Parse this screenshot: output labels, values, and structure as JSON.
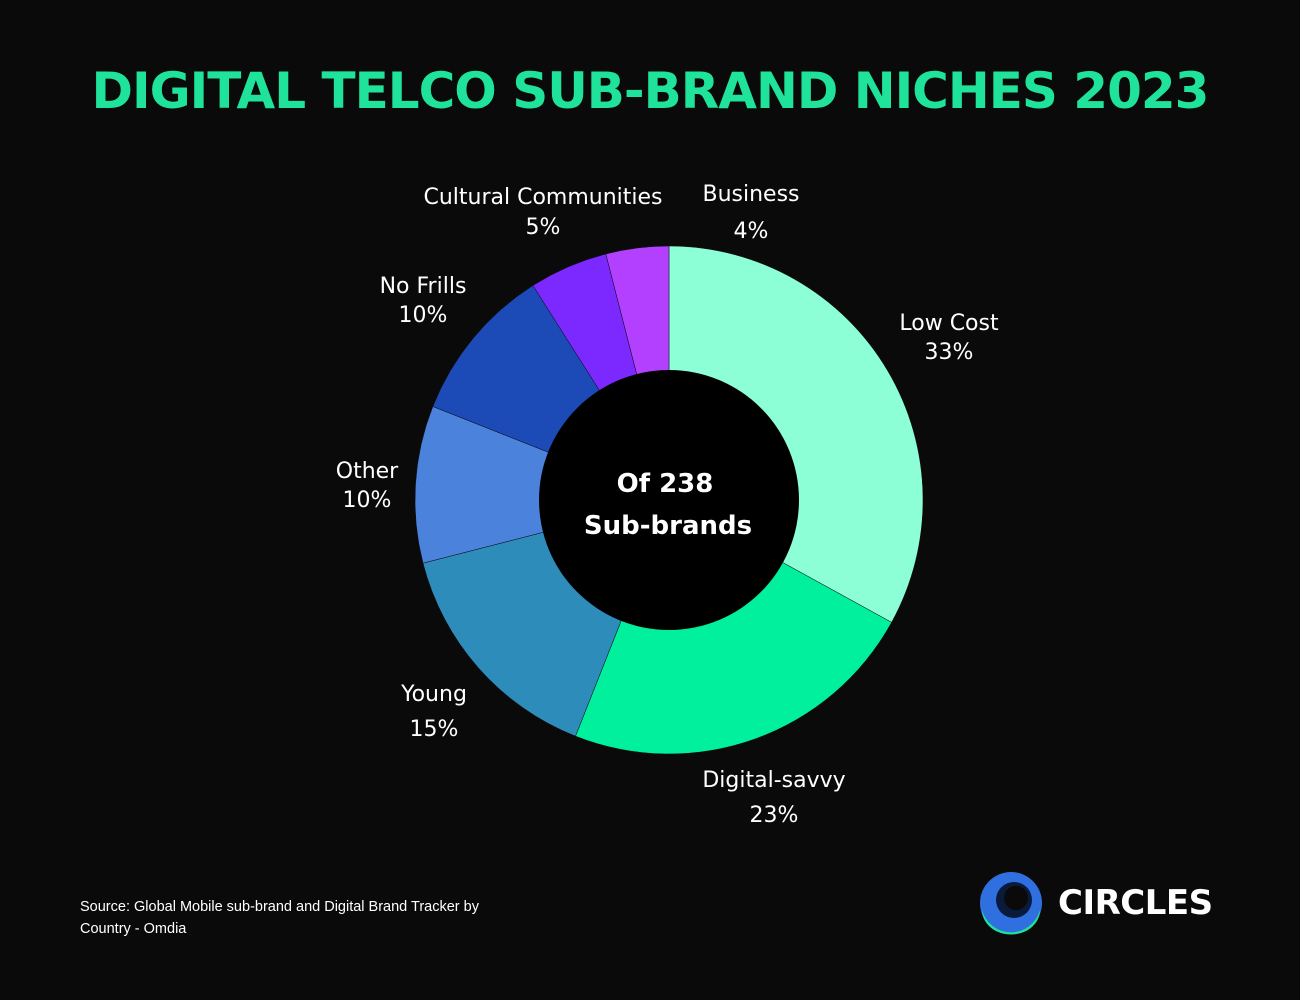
{
  "title": "DIGITAL TELCO SUB-BRAND NICHES 2023",
  "center_label": {
    "line1": "Of 238",
    "line2": "Sub-brands"
  },
  "source": "Source: Global Mobile sub-brand and Digital Brand Tracker by Country - Omdia",
  "brand": {
    "name": "CIRCLES",
    "logo_colors": [
      "#2f6fe0",
      "#1fe39a",
      "#0a1a3a"
    ]
  },
  "colors": {
    "background": "#0a0a0a",
    "title": "#1fe39a",
    "center_hole": "#000000"
  },
  "chart_data": {
    "type": "pie",
    "variant": "donut",
    "title": "DIGITAL TELCO SUB-BRAND NICHES 2023",
    "total_label": "Of 238 Sub-brands",
    "start": "top",
    "direction": "clockwise",
    "slices": [
      {
        "name": "Low Cost",
        "value": 33,
        "label": "33%",
        "color": "#8dffd6"
      },
      {
        "name": "Digital-savvy",
        "value": 23,
        "label": "23%",
        "color": "#00f09e"
      },
      {
        "name": "Young",
        "value": 15,
        "label": "15%",
        "color": "#2e8cba"
      },
      {
        "name": "Other",
        "value": 10,
        "label": "10%",
        "color": "#4b82dc"
      },
      {
        "name": "No Frills",
        "value": 10,
        "label": "10%",
        "color": "#1c4bb8"
      },
      {
        "name": "Cultural Communities",
        "value": 5,
        "label": "5%",
        "color": "#7b29ff"
      },
      {
        "name": "Business",
        "value": 4,
        "label": "4%",
        "color": "#b340ff"
      }
    ]
  }
}
